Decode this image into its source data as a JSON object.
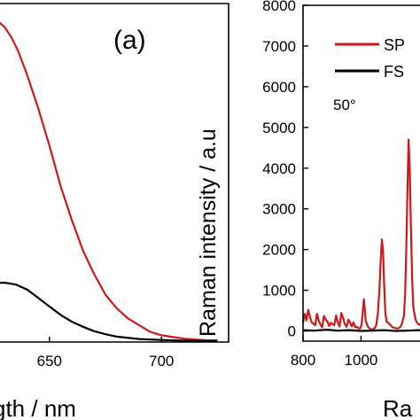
{
  "chart_data": [
    {
      "panel": "(a)",
      "type": "line",
      "xlabel": "gth / nm",
      "xlim": [
        620,
        730
      ],
      "ylim": [
        0,
        1.0
      ],
      "x_ticks": [
        650,
        700
      ],
      "x_tick_labels": [
        "650",
        "700"
      ],
      "series": [
        {
          "color": "#cc1a1a",
          "x": [
            620,
            625,
            630,
            633,
            636,
            640,
            645,
            650,
            655,
            660,
            665,
            670,
            675,
            680,
            685,
            690,
            695,
            700,
            710,
            720,
            725
          ],
          "y": [
            0.97,
            0.96,
            0.93,
            0.9,
            0.86,
            0.79,
            0.69,
            0.58,
            0.46,
            0.36,
            0.27,
            0.2,
            0.14,
            0.1,
            0.07,
            0.05,
            0.03,
            0.02,
            0.01,
            0.005,
            0.005
          ]
        },
        {
          "color": "#000000",
          "x": [
            620,
            625,
            630,
            635,
            640,
            645,
            650,
            655,
            660,
            665,
            670,
            675,
            680,
            690,
            700,
            710,
            720,
            725
          ],
          "y": [
            0.17,
            0.175,
            0.175,
            0.17,
            0.155,
            0.13,
            0.105,
            0.08,
            0.06,
            0.045,
            0.032,
            0.023,
            0.016,
            0.009,
            0.006,
            0.004,
            0.003,
            0.003
          ]
        }
      ]
    },
    {
      "type": "line",
      "ylabel": "Raman intensity / a.u",
      "xlabel": "Ra",
      "xlim": [
        800,
        1240
      ],
      "ylim": [
        -250,
        8000
      ],
      "x_ticks": [
        800,
        1000
      ],
      "x_tick_labels": [
        "800",
        "1000"
      ],
      "y_ticks": [
        0,
        1000,
        2000,
        3000,
        4000,
        5000,
        6000,
        7000,
        8000
      ],
      "y_tick_labels": [
        "0",
        "1000",
        "2000",
        "3000",
        "4000",
        "5000",
        "6000",
        "7000",
        "8000"
      ],
      "annotation": "50°",
      "legend": {
        "position": "top-right",
        "entries": [
          "SP",
          "FS"
        ]
      },
      "series": [
        {
          "name": "SP",
          "color": "#cc1a1a",
          "x": [
            800,
            806,
            812,
            818,
            824,
            830,
            836,
            842,
            848,
            854,
            860,
            866,
            872,
            878,
            884,
            890,
            896,
            902,
            908,
            914,
            920,
            926,
            932,
            938,
            944,
            950,
            956,
            962,
            968,
            974,
            980,
            986,
            992,
            998,
            1002,
            1006,
            1010,
            1016,
            1022,
            1028,
            1034,
            1040,
            1046,
            1052,
            1058,
            1064,
            1068,
            1072,
            1076,
            1080,
            1084,
            1088,
            1092,
            1096,
            1100,
            1106,
            1112,
            1118,
            1124,
            1130,
            1136,
            1142,
            1148,
            1152,
            1156,
            1160,
            1164,
            1168,
            1172,
            1176,
            1180,
            1186,
            1190,
            1196,
            1202,
            1210,
            1220,
            1232,
            1240
          ],
          "y": [
            200,
            420,
            260,
            520,
            330,
            210,
            180,
            140,
            420,
            250,
            160,
            90,
            370,
            280,
            230,
            120,
            200,
            170,
            140,
            380,
            210,
            110,
            440,
            320,
            170,
            100,
            280,
            210,
            110,
            210,
            90,
            100,
            60,
            70,
            160,
            470,
            780,
            260,
            120,
            70,
            40,
            40,
            60,
            130,
            420,
            1100,
            1750,
            2250,
            1950,
            1100,
            450,
            220,
            210,
            180,
            160,
            110,
            80,
            70,
            60,
            70,
            100,
            200,
            380,
            900,
            2000,
            3400,
            4700,
            4000,
            2600,
            1300,
            600,
            350,
            240,
            180,
            150,
            160,
            150,
            170,
            200
          ]
        },
        {
          "name": "FS",
          "color": "#000000",
          "x": [
            800,
            840,
            880,
            920,
            960,
            1000,
            1040,
            1080,
            1120,
            1160,
            1200,
            1240
          ],
          "y": [
            20,
            10,
            30,
            10,
            20,
            0,
            10,
            20,
            0,
            10,
            20,
            10
          ]
        }
      ]
    }
  ]
}
